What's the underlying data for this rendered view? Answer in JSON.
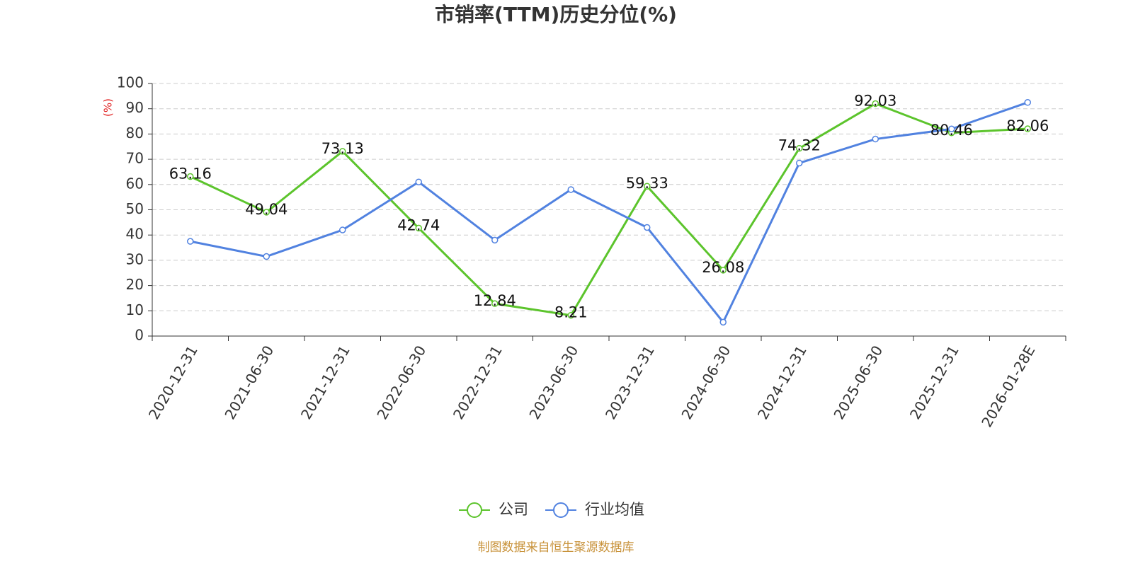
{
  "chart_data": {
    "type": "line",
    "title": "市销率(TTM)历史分位(%)",
    "y_label": "(%)",
    "categories": [
      "2020-12-31",
      "2021-06-30",
      "2021-12-31",
      "2022-06-30",
      "2022-12-31",
      "2023-06-30",
      "2023-12-31",
      "2024-06-30",
      "2024-12-31",
      "2025-06-30",
      "2025-12-31",
      "2026-01-28E"
    ],
    "series": [
      {
        "name": "公司",
        "color": "#5cc42c",
        "values": [
          63.16,
          49.04,
          73.13,
          42.74,
          12.84,
          8.21,
          59.33,
          26.08,
          74.32,
          92.03,
          80.46,
          82.06
        ],
        "show_labels": true
      },
      {
        "name": "行业均值",
        "color": "#5182e0",
        "values": [
          37.5,
          31.5,
          42,
          61,
          38,
          58,
          43,
          5.5,
          68.5,
          78,
          82,
          92.5
        ],
        "show_labels": false
      }
    ],
    "ylim": [
      0,
      100
    ],
    "yticks": [
      0,
      10,
      20,
      30,
      40,
      50,
      60,
      70,
      80,
      90,
      100
    ],
    "grid": true,
    "source": "制图数据来自恒生聚源数据库"
  }
}
